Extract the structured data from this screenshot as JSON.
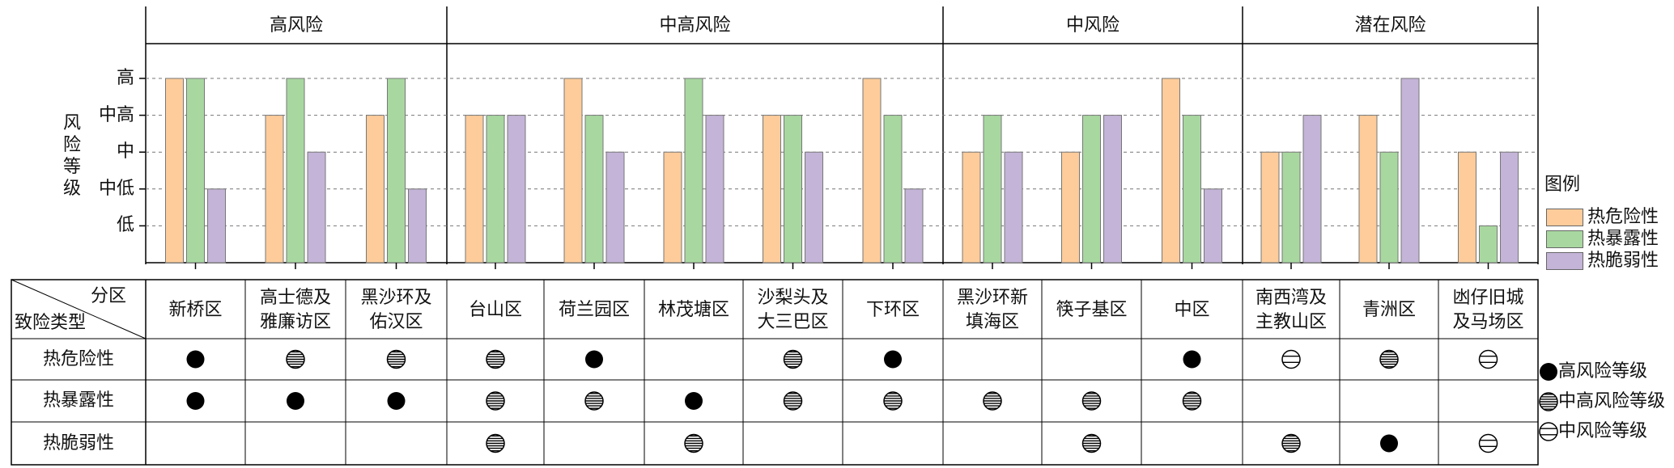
{
  "chart_data": {
    "type": "bar",
    "ylabel": "风险等级",
    "yticks": [
      "低",
      "中低",
      "中",
      "中高",
      "高"
    ],
    "ylim": [
      0,
      5
    ],
    "grid": "horizontal dashed",
    "groups": [
      {
        "title": "高风险",
        "districts": [
          "新桥区",
          "高士德及雅廉访区",
          "黑沙环及佑汉区"
        ]
      },
      {
        "title": "中高风险",
        "districts": [
          "台山区",
          "荷兰园区",
          "林茂塘区",
          "沙梨头及大三巴区",
          "下环区"
        ]
      },
      {
        "title": "中风险",
        "districts": [
          "黑沙环新填海区",
          "筷子基区",
          "中区"
        ]
      },
      {
        "title": "潜在风险",
        "districts": [
          "南西湾及主教山区",
          "青洲区",
          "凼仔旧城及马场区"
        ]
      }
    ],
    "categories": [
      "新桥区",
      "高士德及雅廉访区",
      "黑沙环及佑汉区",
      "台山区",
      "荷兰园区",
      "林茂塘区",
      "沙梨头及大三巴区",
      "下环区",
      "黑沙环新填海区",
      "筷子基区",
      "中区",
      "南西湾及主教山区",
      "青洲区",
      "凼仔旧城及马场区"
    ],
    "category_display": [
      [
        "新桥区"
      ],
      [
        "高士德及",
        "雅廉访区"
      ],
      [
        "黑沙环及",
        "佑汉区"
      ],
      [
        "台山区"
      ],
      [
        "荷兰园区"
      ],
      [
        "林茂塘区"
      ],
      [
        "沙梨头及",
        "大三巴区"
      ],
      [
        "下环区"
      ],
      [
        "黑沙环新",
        "填海区"
      ],
      [
        "筷子基区"
      ],
      [
        "中区"
      ],
      [
        "南西湾及",
        "主教山区"
      ],
      [
        "青洲区"
      ],
      [
        "凼仔旧城",
        "及马场区"
      ]
    ],
    "series": [
      {
        "name": "热危险性",
        "color": "#fdcc9a",
        "values": [
          5,
          4,
          4,
          4,
          5,
          3,
          4,
          5,
          3,
          3,
          5,
          3,
          4,
          3
        ]
      },
      {
        "name": "热暴露性",
        "color": "#a8d8a0",
        "values": [
          5,
          5,
          5,
          4,
          4,
          5,
          4,
          4,
          4,
          4,
          4,
          3,
          3,
          1
        ]
      },
      {
        "name": "热脆弱性",
        "color": "#c4b4d8",
        "values": [
          2,
          3,
          2,
          4,
          3,
          4,
          3,
          2,
          3,
          4,
          2,
          4,
          5,
          3
        ]
      }
    ],
    "legend": {
      "title": "图例",
      "placement": "right"
    },
    "table": {
      "header_top": "分区",
      "header_bottom": "致险类型",
      "rows": [
        {
          "label": "热危险性",
          "marks": [
            "high",
            "medhigh",
            "medhigh",
            "medhigh",
            "high",
            "",
            "medhigh",
            "high",
            "",
            "",
            "high",
            "med",
            "medhigh",
            "med"
          ]
        },
        {
          "label": "热暴露性",
          "marks": [
            "high",
            "high",
            "high",
            "medhigh",
            "medhigh",
            "high",
            "medhigh",
            "medhigh",
            "medhigh",
            "medhigh",
            "medhigh",
            "",
            "",
            ""
          ]
        },
        {
          "label": "热脆弱性",
          "marks": [
            "",
            "",
            "",
            "medhigh",
            "",
            "medhigh",
            "",
            "",
            "",
            "medhigh",
            "",
            "medhigh",
            "high",
            "med"
          ]
        }
      ]
    },
    "mark_legend": [
      {
        "type": "high",
        "label": "高风险等级"
      },
      {
        "type": "medhigh",
        "label": "中高风险等级"
      },
      {
        "type": "med",
        "label": "中风险等级"
      }
    ]
  }
}
